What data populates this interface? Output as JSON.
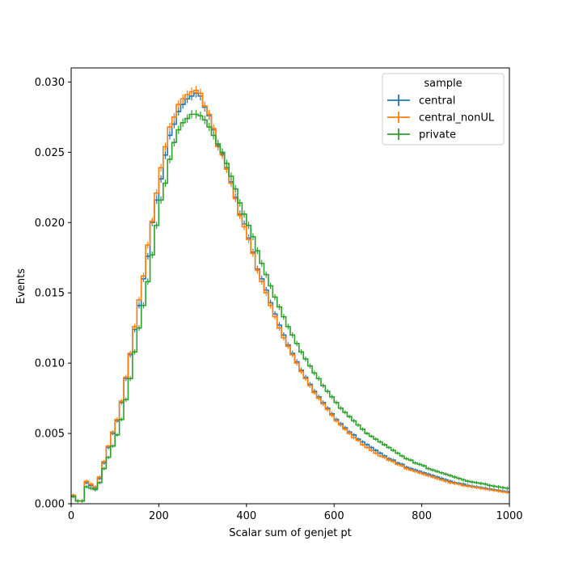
{
  "chart_data": {
    "type": "line",
    "step": true,
    "xlabel": "Scalar sum of genjet pt",
    "ylabel": "Events",
    "xlim": [
      0,
      1000
    ],
    "ylim": [
      0,
      0.031
    ],
    "xticks": [
      "0",
      "200",
      "400",
      "600",
      "800",
      "1000"
    ],
    "yticks": [
      "0.000",
      "0.005",
      "0.010",
      "0.015",
      "0.020",
      "0.025",
      "0.030"
    ],
    "legend": {
      "title": "sample",
      "placement": "top-right"
    },
    "bin_width": 10,
    "bin_start": 0,
    "series": [
      {
        "name": "central",
        "color": "#1f77b4",
        "values": [
          0.0006,
          0.0002,
          0.0002,
          0.0015,
          0.0013,
          0.0011,
          0.0018,
          0.0029,
          0.004,
          0.005,
          0.0059,
          0.0072,
          0.0089,
          0.0106,
          0.0124,
          0.0141,
          0.016,
          0.0176,
          0.02,
          0.0216,
          0.0231,
          0.0248,
          0.0262,
          0.027,
          0.0279,
          0.0284,
          0.0288,
          0.029,
          0.0292,
          0.029,
          0.0282,
          0.0276,
          0.0266,
          0.0255,
          0.0249,
          0.0239,
          0.0229,
          0.0218,
          0.0206,
          0.0199,
          0.0189,
          0.0179,
          0.0167,
          0.016,
          0.0152,
          0.0143,
          0.0135,
          0.0127,
          0.012,
          0.0113,
          0.0107,
          0.0101,
          0.0095,
          0.009,
          0.0085,
          0.008,
          0.0076,
          0.0072,
          0.0068,
          0.0064,
          0.006,
          0.0057,
          0.0054,
          0.0051,
          0.0049,
          0.0046,
          0.0044,
          0.0042,
          0.004,
          0.0038,
          0.0036,
          0.0034,
          0.0032,
          0.0031,
          0.0029,
          0.0028,
          0.0026,
          0.0025,
          0.0024,
          0.0023,
          0.0022,
          0.0021,
          0.002,
          0.0019,
          0.0018,
          0.0017,
          0.0016,
          0.0015,
          0.00145,
          0.0014,
          0.0013,
          0.00125,
          0.0012,
          0.00115,
          0.0011,
          0.00105,
          0.001,
          0.00095,
          0.0009,
          0.00085
        ]
      },
      {
        "name": "central_nonUL",
        "color": "#ff7f0e",
        "values": [
          0.0006,
          0.0002,
          0.0002,
          0.0016,
          0.0014,
          0.0012,
          0.0019,
          0.003,
          0.0041,
          0.0051,
          0.006,
          0.0073,
          0.009,
          0.0107,
          0.0126,
          0.0145,
          0.0162,
          0.0184,
          0.0201,
          0.0221,
          0.0239,
          0.0254,
          0.0268,
          0.0275,
          0.0284,
          0.0288,
          0.0291,
          0.0293,
          0.0294,
          0.0292,
          0.0283,
          0.0277,
          0.0267,
          0.0254,
          0.0248,
          0.0238,
          0.0228,
          0.0217,
          0.0205,
          0.0197,
          0.0188,
          0.0178,
          0.0166,
          0.0158,
          0.015,
          0.0141,
          0.0133,
          0.0125,
          0.0118,
          0.0112,
          0.0106,
          0.01,
          0.0094,
          0.0089,
          0.0084,
          0.0079,
          0.0075,
          0.0071,
          0.0067,
          0.0063,
          0.0059,
          0.0056,
          0.0053,
          0.005,
          0.0047,
          0.0045,
          0.0042,
          0.004,
          0.0038,
          0.0036,
          0.0034,
          0.0033,
          0.0031,
          0.003,
          0.0028,
          0.0027,
          0.0025,
          0.0024,
          0.0023,
          0.0022,
          0.0021,
          0.002,
          0.0019,
          0.0018,
          0.0017,
          0.0016,
          0.0015,
          0.00145,
          0.0014,
          0.0013,
          0.00125,
          0.0012,
          0.00115,
          0.0011,
          0.00105,
          0.001,
          0.00095,
          0.0009,
          0.00085,
          0.0008
        ]
      },
      {
        "name": "private",
        "color": "#2ca02c",
        "values": [
          0.0005,
          0.0002,
          0.0002,
          0.0012,
          0.0011,
          0.001,
          0.0015,
          0.0025,
          0.0033,
          0.0041,
          0.0049,
          0.006,
          0.0074,
          0.0089,
          0.0108,
          0.0125,
          0.0141,
          0.0158,
          0.0177,
          0.0198,
          0.0216,
          0.0228,
          0.0245,
          0.0257,
          0.0266,
          0.0271,
          0.0274,
          0.0277,
          0.0277,
          0.0276,
          0.0273,
          0.0268,
          0.0262,
          0.0256,
          0.025,
          0.0242,
          0.0233,
          0.0224,
          0.0214,
          0.0206,
          0.0198,
          0.019,
          0.018,
          0.0171,
          0.0163,
          0.0155,
          0.0147,
          0.014,
          0.0133,
          0.0126,
          0.012,
          0.0114,
          0.0108,
          0.0103,
          0.0098,
          0.0093,
          0.0089,
          0.0084,
          0.008,
          0.0076,
          0.0072,
          0.0068,
          0.0065,
          0.0062,
          0.0059,
          0.0056,
          0.0053,
          0.005,
          0.0048,
          0.0046,
          0.0044,
          0.0042,
          0.004,
          0.0038,
          0.0036,
          0.0034,
          0.0032,
          0.0031,
          0.0029,
          0.0028,
          0.0027,
          0.0025,
          0.0024,
          0.0023,
          0.0022,
          0.0021,
          0.002,
          0.0019,
          0.0018,
          0.0017,
          0.0016,
          0.00155,
          0.0015,
          0.00145,
          0.0014,
          0.0013,
          0.00125,
          0.0012,
          0.00115,
          0.0011
        ]
      }
    ]
  }
}
